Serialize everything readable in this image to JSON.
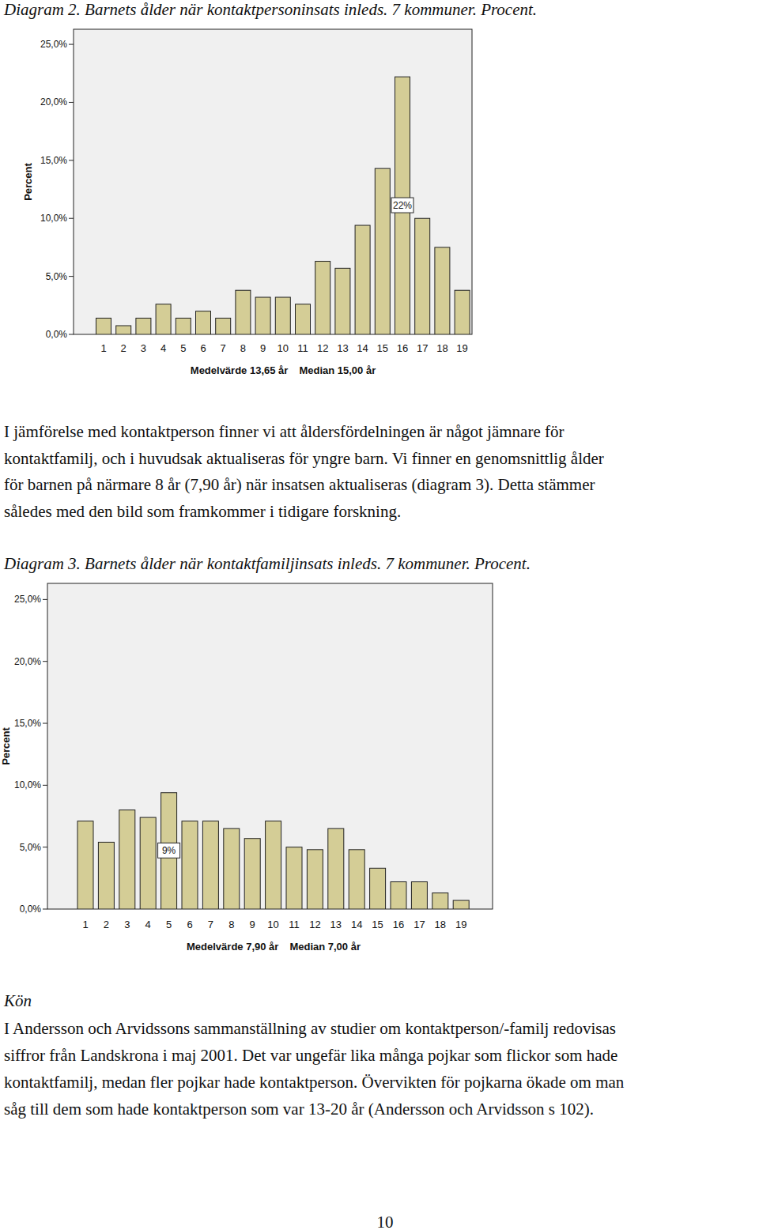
{
  "page": {
    "caption_1": "Diagram 2. Barnets ålder när kontaktpersoninsats inleds. 7 kommuner. Procent.",
    "paragraph_1": [
      "I jämförelse med kontaktperson finner vi att åldersfördelningen är något jämnare för",
      "kontaktfamilj, och i huvudsak aktualiseras för yngre barn. Vi finner en genomsnittlig ålder",
      "för barnen på närmare 8 år (7,90 år) när insatsen aktualiseras (diagram 3). Detta stämmer",
      "således med den bild som framkommer i tidigare forskning."
    ],
    "caption_2": "Diagram 3. Barnets ålder när kontaktfamiljinsats inleds. 7 kommuner. Procent.",
    "heading": "Kön",
    "paragraph_2": [
      "I Andersson och Arvidssons sammanställning av studier om kontaktperson/-familj redovisas",
      "siffror från Landskrona i maj 2001. Det var ungefär lika många pojkar som flickor som hade",
      "kontaktfamilj, medan fler pojkar hade kontaktperson. Övervikten för pojkarna ökade om man",
      "såg till dem som hade kontaktperson som var 13-20 år (Andersson och Arvidsson s 102)."
    ],
    "page_number": "10"
  },
  "chart_data": [
    {
      "type": "bar",
      "categories": [
        "1",
        "2",
        "3",
        "4",
        "5",
        "6",
        "7",
        "8",
        "9",
        "10",
        "11",
        "12",
        "13",
        "14",
        "15",
        "16",
        "17",
        "18",
        "19"
      ],
      "values": [
        1.4,
        0.75,
        1.4,
        2.6,
        1.4,
        2.0,
        1.4,
        3.8,
        3.2,
        3.2,
        2.6,
        6.3,
        5.7,
        9.4,
        14.3,
        22.2,
        10.0,
        7.5,
        3.8
      ],
      "value_labels": [
        null,
        null,
        null,
        null,
        null,
        null,
        null,
        null,
        null,
        null,
        null,
        null,
        null,
        null,
        null,
        "22%",
        null,
        null,
        null
      ],
      "color": "#d4cd96",
      "ylim": [
        0,
        26.3
      ],
      "yticks": [
        {
          "value": 0,
          "label": "0,0%"
        },
        {
          "value": 5,
          "label": "5,0%"
        },
        {
          "value": 10,
          "label": "10,0%"
        },
        {
          "value": 15,
          "label": "15,0%"
        },
        {
          "value": 20,
          "label": "20,0%"
        },
        {
          "value": 25,
          "label": "25,0%"
        }
      ],
      "y_label": "Percent",
      "x_label": [
        "Medelvärde 13,65 år",
        "Median 15,00 år"
      ]
    },
    {
      "type": "bar",
      "categories": [
        "1",
        "2",
        "3",
        "4",
        "5",
        "6",
        "7",
        "8",
        "9",
        "10",
        "11",
        "12",
        "13",
        "14",
        "15",
        "16",
        "17",
        "18",
        "19"
      ],
      "values": [
        7.1,
        5.4,
        8.0,
        7.4,
        9.4,
        7.1,
        7.1,
        6.5,
        5.7,
        7.1,
        5.0,
        4.8,
        6.5,
        4.8,
        3.3,
        2.2,
        2.2,
        1.3,
        0.7
      ],
      "value_labels": [
        null,
        null,
        null,
        null,
        "9%",
        null,
        null,
        null,
        null,
        null,
        null,
        null,
        null,
        null,
        null,
        null,
        null,
        null,
        null
      ],
      "color": "#d4cd96",
      "ylim": [
        0,
        26.3
      ],
      "yticks": [
        {
          "value": 0,
          "label": "0,0%"
        },
        {
          "value": 5,
          "label": "5,0%"
        },
        {
          "value": 10,
          "label": "10,0%"
        },
        {
          "value": 15,
          "label": "15,0%"
        },
        {
          "value": 20,
          "label": "20,0%"
        },
        {
          "value": 25,
          "label": "25,0%"
        }
      ],
      "y_label": "Percent",
      "x_label": [
        "Medelvärde 7,90 år",
        "Median 7,00 år"
      ]
    }
  ]
}
